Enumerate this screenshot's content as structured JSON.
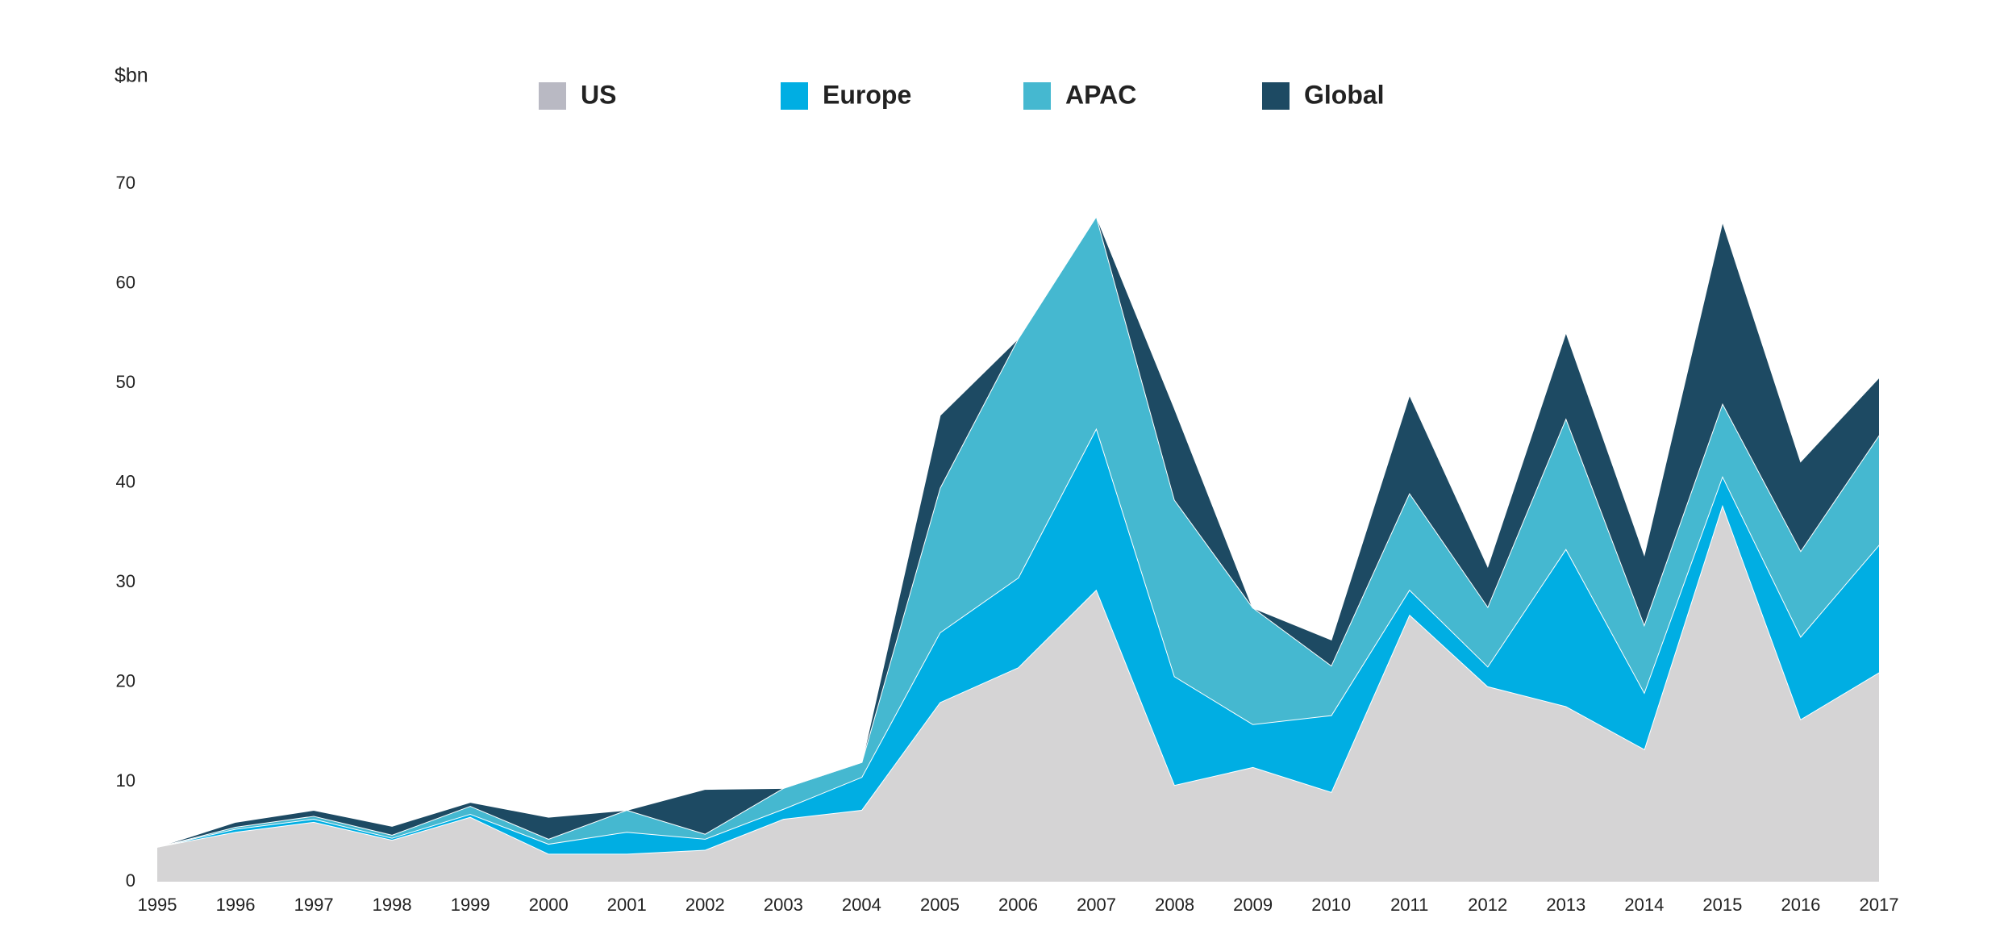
{
  "chart_data": {
    "type": "stacked_area",
    "y_label": "$bn",
    "x": [
      1995,
      1996,
      1997,
      1998,
      1999,
      2000,
      2001,
      2002,
      2003,
      2004,
      2005,
      2006,
      2007,
      2008,
      2009,
      2010,
      2011,
      2012,
      2013,
      2014,
      2015,
      2016,
      2017
    ],
    "series": [
      {
        "name": "US",
        "color": "#d5d4d5",
        "values": [
          3.5,
          5,
          6,
          4.2,
          6.5,
          2.8,
          2.8,
          3.2,
          6.3,
          7.2,
          18,
          21.5,
          29.3,
          9.7,
          11.5,
          9,
          26.8,
          19.6,
          17.6,
          13.3,
          37.8,
          16.3,
          21
        ]
      },
      {
        "name": "Europe",
        "color": "#00aee3",
        "values": [
          0,
          0.3,
          0.3,
          0.2,
          0.3,
          1,
          2.2,
          1.1,
          1,
          3.3,
          7,
          9,
          16.2,
          10.9,
          4.3,
          7.7,
          2.5,
          2,
          15.8,
          5.7,
          2.9,
          8.3,
          12.8
        ]
      },
      {
        "name": "APAC",
        "color": "#45b8d0",
        "values": [
          0,
          0.2,
          0.3,
          0.3,
          0.8,
          0.5,
          2.2,
          0.5,
          2.1,
          1.5,
          14.5,
          24,
          21.3,
          17.7,
          11.7,
          5,
          9.7,
          6,
          13.1,
          6.8,
          7.3,
          8.6,
          11
        ]
      },
      {
        "name": "Global",
        "color": "#1d4a63",
        "values": [
          0,
          0.5,
          0.6,
          0.9,
          0.4,
          2.2,
          0,
          4.5,
          0,
          0,
          7.3,
          0,
          0,
          9.2,
          0,
          2.6,
          9.9,
          4.1,
          8.7,
          7.1,
          18.3,
          9,
          5.8
        ]
      }
    ],
    "xlim": [
      1995,
      2017
    ],
    "ylim": [
      0,
      70
    ],
    "yticks": [
      0,
      10,
      20,
      30,
      40,
      50,
      60,
      70
    ],
    "grid": false,
    "legend": "top"
  }
}
